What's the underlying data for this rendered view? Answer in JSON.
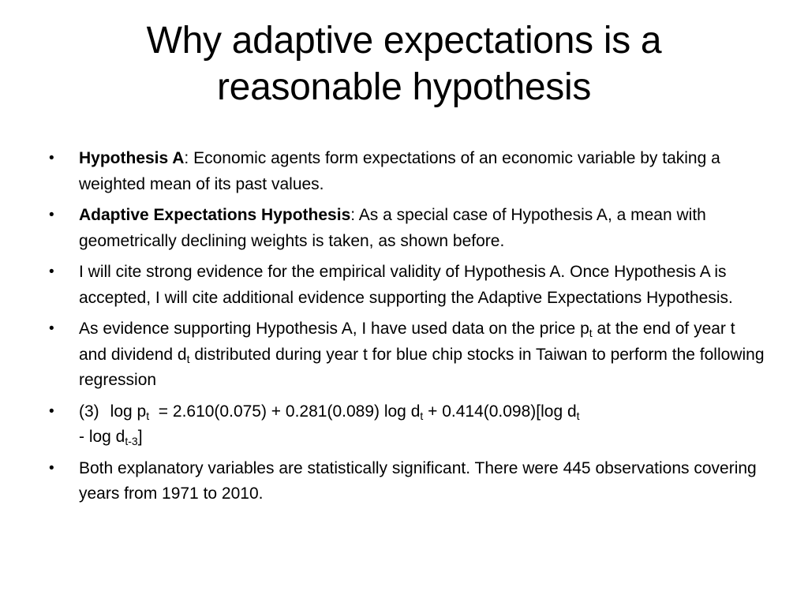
{
  "slide": {
    "title_line1": "Why adaptive expectations is a",
    "title_line2": "reasonable hypothesis",
    "bullet_char": "•",
    "bullets": [
      {
        "bold": "Hypothesis A",
        "text": ": Economic agents form expectations of an economic variable by taking a weighted mean of its past values."
      },
      {
        "bold": "Adaptive Expectations Hypothesis",
        "text": ": As a special case of Hypothesis A, a mean with geometrically declining weights is taken, as shown before."
      },
      {
        "text": "I will cite strong evidence for the empirical validity of Hypothesis A. Once Hypothesis A is accepted, I will cite additional evidence supporting the Adaptive Expectations Hypothesis."
      },
      {
        "t1": "As evidence supporting Hypothesis A, I have used data on the price p",
        "s1": "t",
        "t2": " at the end of year t and dividend d",
        "s2": "t",
        "t3": " distributed during year t for blue chip stocks in Taiwan to perform the following regression"
      },
      {
        "num": "(3)",
        "t1": "log p",
        "s1": "t",
        "t2": " = 2.610(0.075) + 0.281(0.089) log d",
        "s2": "t",
        "t3": " + 0.414(0.098)[log d",
        "s3": "t",
        "t4": " - log d",
        "s4": "t-3",
        "t5": "]"
      },
      {
        "text": "Both explanatory variables are statistically significant. There were 445 observations covering years from 1971 to 2010."
      }
    ]
  }
}
